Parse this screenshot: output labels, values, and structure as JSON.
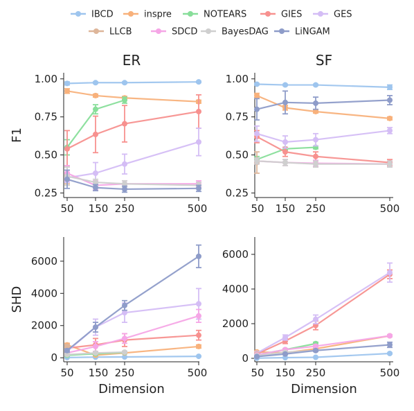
{
  "legend": [
    {
      "name": "IBCD",
      "color": "#9ec5ee"
    },
    {
      "name": "inspre",
      "color": "#f8b17b"
    },
    {
      "name": "NOTEARS",
      "color": "#88de9a"
    },
    {
      "name": "GIES",
      "color": "#f7918f"
    },
    {
      "name": "GES",
      "color": "#d4bdf5"
    },
    {
      "name": "LLCB",
      "color": "#deb69a"
    },
    {
      "name": "SDCD",
      "color": "#f5a6e6"
    },
    {
      "name": "BayesDAG",
      "color": "#cfcfcf"
    },
    {
      "name": "LiNGAM",
      "color": "#8e9cc9"
    }
  ],
  "chart_data": [
    {
      "type": "line",
      "panel": "top-left",
      "title": "ER",
      "xlabel": "",
      "ylabel": "F1",
      "x": [
        50,
        150,
        250,
        500
      ],
      "xticks": [
        "50",
        "150",
        "250",
        "500"
      ],
      "yticks": [
        "0.25",
        "0.50",
        "0.75",
        "1.00"
      ],
      "ytick_values": [
        0.25,
        0.5,
        0.75,
        1.0
      ],
      "ylim": [
        0.22,
        1.04
      ],
      "series": [
        {
          "name": "IBCD",
          "values": [
            0.97,
            0.975,
            0.975,
            0.98
          ],
          "err": [
            0.01,
            0.005,
            0.005,
            0.005
          ]
        },
        {
          "name": "inspre",
          "values": [
            0.92,
            0.89,
            0.875,
            0.85
          ],
          "err": [
            0.015,
            0.01,
            0.01,
            0.01
          ]
        },
        {
          "name": "NOTEARS",
          "values": [
            0.55,
            0.8,
            0.86,
            null
          ],
          "err": [
            0.05,
            0.03,
            0.02,
            null
          ]
        },
        {
          "name": "GIES",
          "values": [
            0.54,
            0.635,
            0.705,
            0.785
          ],
          "err": [
            0.12,
            0.12,
            0.12,
            0.11
          ]
        },
        {
          "name": "GES",
          "values": [
            0.35,
            0.38,
            0.44,
            0.585
          ],
          "err": [
            0.03,
            0.07,
            0.065,
            0.09
          ]
        },
        {
          "name": "LLCB",
          "values": [
            0.37,
            null,
            null,
            null
          ],
          "err": [
            0.06,
            null,
            null,
            null
          ]
        },
        {
          "name": "SDCD",
          "values": [
            0.38,
            0.3,
            0.31,
            0.31
          ],
          "err": [
            0.05,
            0.03,
            0.02,
            0.02
          ]
        },
        {
          "name": "BayesDAG",
          "values": [
            0.36,
            0.32,
            0.31,
            0.3
          ],
          "err": [
            0.06,
            0.02,
            0.02,
            0.02
          ]
        },
        {
          "name": "LiNGAM",
          "values": [
            0.34,
            0.285,
            0.275,
            0.28
          ],
          "err": [
            0.06,
            0.02,
            0.02,
            0.02
          ]
        }
      ]
    },
    {
      "type": "line",
      "panel": "top-right",
      "title": "SF",
      "xlabel": "",
      "ylabel": "",
      "x": [
        50,
        150,
        250,
        500
      ],
      "xticks": [
        "50",
        "150",
        "250",
        "500"
      ],
      "yticks": [
        "0.25",
        "0.50",
        "0.75",
        "1.00"
      ],
      "ytick_values": [
        0.25,
        0.5,
        0.75,
        1.0
      ],
      "ylim": [
        0.22,
        1.04
      ],
      "series": [
        {
          "name": "IBCD",
          "values": [
            0.965,
            0.96,
            0.96,
            0.945
          ],
          "err": [
            0.005,
            0.005,
            0.005,
            0.015
          ]
        },
        {
          "name": "inspre",
          "values": [
            0.89,
            0.81,
            0.785,
            0.74
          ],
          "err": [
            0.015,
            0.015,
            0.01,
            0.01
          ]
        },
        {
          "name": "NOTEARS",
          "values": [
            0.47,
            0.54,
            0.55,
            null
          ],
          "err": [
            0.02,
            0.01,
            0.01,
            null
          ]
        },
        {
          "name": "GIES",
          "values": [
            0.62,
            0.52,
            0.49,
            0.45
          ],
          "err": [
            0.04,
            0.03,
            0.03,
            0.02
          ]
        },
        {
          "name": "GES",
          "values": [
            0.64,
            0.585,
            0.6,
            0.66
          ],
          "err": [
            0.05,
            0.04,
            0.04,
            0.02
          ]
        },
        {
          "name": "LLCB",
          "values": [
            0.45,
            null,
            null,
            null
          ],
          "err": [
            0.07,
            null,
            null,
            null
          ]
        },
        {
          "name": "SDCD",
          "values": [
            0.46,
            0.45,
            0.445,
            0.44
          ],
          "err": [
            0.02,
            0.02,
            0.02,
            0.02
          ]
        },
        {
          "name": "BayesDAG",
          "values": [
            0.46,
            0.45,
            0.44,
            0.44
          ],
          "err": [
            0.02,
            0.02,
            0.02,
            0.02
          ]
        },
        {
          "name": "LiNGAM",
          "values": [
            0.8,
            0.845,
            0.84,
            0.86
          ],
          "err": [
            0.07,
            0.075,
            0.04,
            0.03
          ]
        }
      ]
    },
    {
      "type": "line",
      "panel": "bottom-left",
      "title": "",
      "xlabel": "Dimension",
      "ylabel": "SHD",
      "x": [
        50,
        150,
        250,
        500
      ],
      "xticks": [
        "50",
        "150",
        "250",
        "500"
      ],
      "yticks": [
        "0",
        "2000",
        "4000",
        "6000"
      ],
      "ytick_values": [
        0,
        2000,
        4000,
        6000
      ],
      "ylim": [
        -250,
        7500
      ],
      "series": [
        {
          "name": "IBCD",
          "values": [
            15,
            40,
            50,
            90
          ],
          "err": [
            5,
            10,
            10,
            20
          ]
        },
        {
          "name": "inspre",
          "values": [
            800,
            160,
            300,
            700
          ],
          "err": [
            100,
            50,
            50,
            100
          ]
        },
        {
          "name": "NOTEARS",
          "values": [
            150,
            250,
            330,
            null
          ],
          "err": [
            30,
            40,
            40,
            null
          ]
        },
        {
          "name": "GIES",
          "values": [
            600,
            800,
            1100,
            1400
          ],
          "err": [
            150,
            400,
            400,
            300
          ]
        },
        {
          "name": "GES",
          "values": [
            400,
            1900,
            2800,
            3350
          ],
          "err": [
            150,
            500,
            600,
            950
          ]
        },
        {
          "name": "LLCB",
          "values": [
            700,
            null,
            null,
            null
          ],
          "err": [
            120,
            null,
            null,
            null
          ]
        },
        {
          "name": "SDCD",
          "values": [
            300,
            700,
            1200,
            2600
          ],
          "err": [
            80,
            300,
            300,
            400
          ]
        },
        {
          "name": "BayesDAG",
          "values": [
            200,
            300,
            350,
            null
          ],
          "err": [
            50,
            60,
            60,
            null
          ]
        },
        {
          "name": "LiNGAM",
          "values": [
            450,
            1900,
            3250,
            6300
          ],
          "err": [
            100,
            300,
            300,
            700
          ]
        }
      ]
    },
    {
      "type": "line",
      "panel": "bottom-right",
      "title": "",
      "xlabel": "Dimension",
      "ylabel": "",
      "x": [
        50,
        150,
        250,
        500
      ],
      "xticks": [
        "50",
        "150",
        "250",
        "500"
      ],
      "yticks": [
        "0",
        "2000",
        "4000",
        "6000"
      ],
      "ytick_values": [
        0,
        2000,
        4000,
        6000
      ],
      "ylim": [
        -200,
        7000
      ],
      "series": [
        {
          "name": "IBCD",
          "values": [
            10,
            40,
            60,
            280
          ],
          "err": [
            5,
            10,
            10,
            30
          ]
        },
        {
          "name": "inspre",
          "values": [
            370,
            320,
            550,
            1300
          ],
          "err": [
            50,
            30,
            50,
            50
          ]
        },
        {
          "name": "NOTEARS",
          "values": [
            200,
            500,
            850,
            null
          ],
          "err": [
            30,
            60,
            80,
            null
          ]
        },
        {
          "name": "GIES",
          "values": [
            250,
            1000,
            1900,
            4850
          ],
          "err": [
            60,
            150,
            250,
            250
          ]
        },
        {
          "name": "GES",
          "values": [
            300,
            1200,
            2250,
            4950
          ],
          "err": [
            60,
            150,
            250,
            550
          ]
        },
        {
          "name": "LLCB",
          "values": [
            250,
            null,
            null,
            null
          ],
          "err": [
            60,
            null,
            null,
            null
          ]
        },
        {
          "name": "SDCD",
          "values": [
            200,
            500,
            700,
            1300
          ],
          "err": [
            40,
            60,
            80,
            60
          ]
        },
        {
          "name": "BayesDAG",
          "values": [
            150,
            350,
            450,
            null
          ],
          "err": [
            30,
            40,
            40,
            null
          ]
        },
        {
          "name": "LiNGAM",
          "values": [
            100,
            250,
            450,
            780
          ],
          "err": [
            30,
            40,
            60,
            150
          ]
        }
      ]
    }
  ]
}
